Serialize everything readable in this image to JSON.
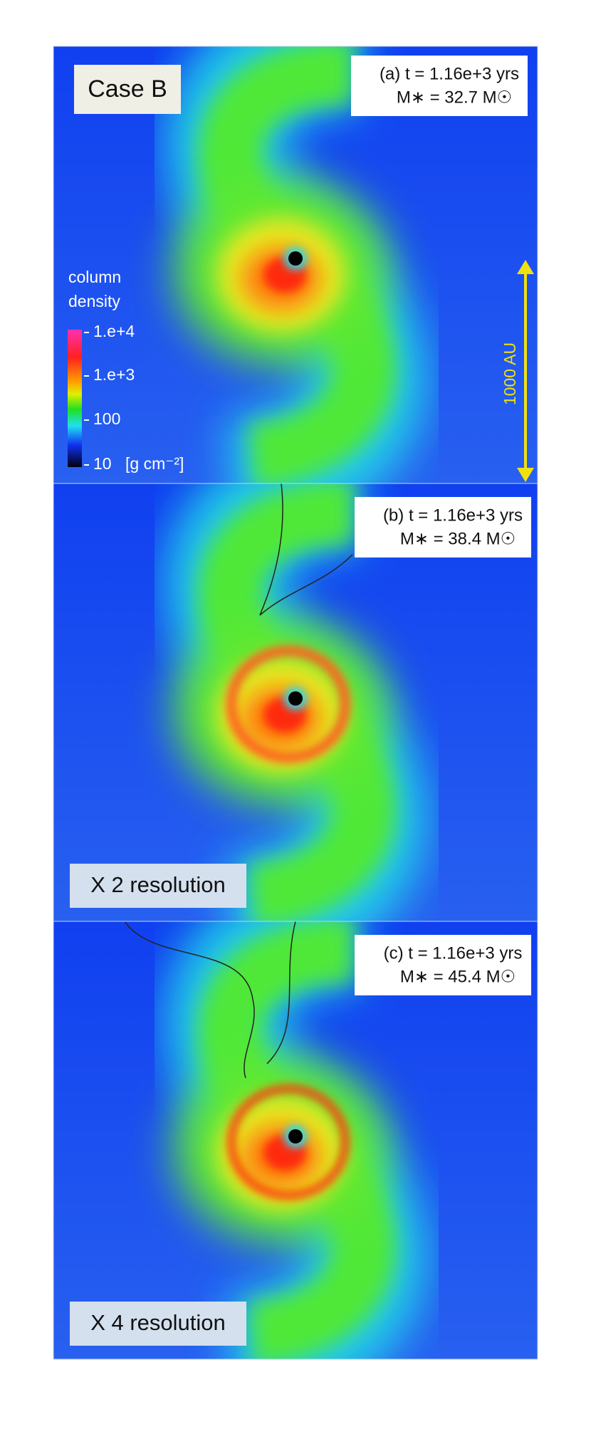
{
  "figure": {
    "panels": [
      {
        "time": "(a)  t = 1.16e+3 yrs",
        "mass": "M∗ = 32.7 M☉",
        "tag": "Case B"
      },
      {
        "time": "(b) t = 1.16e+3 yrs",
        "mass": "M∗ = 38.4 M☉",
        "tag": "X 2 resolution"
      },
      {
        "time": "(c) t = 1.16e+3 yrs",
        "mass": "M∗ = 45.4 M☉",
        "tag": "X 4 resolution"
      }
    ],
    "colorbar": {
      "title": [
        "column",
        "density"
      ],
      "ticks": [
        "1.e+4",
        "1.e+3",
        "100",
        "10"
      ],
      "unit": "[g cm⁻²]"
    },
    "scale_bar": "1000 AU"
  }
}
